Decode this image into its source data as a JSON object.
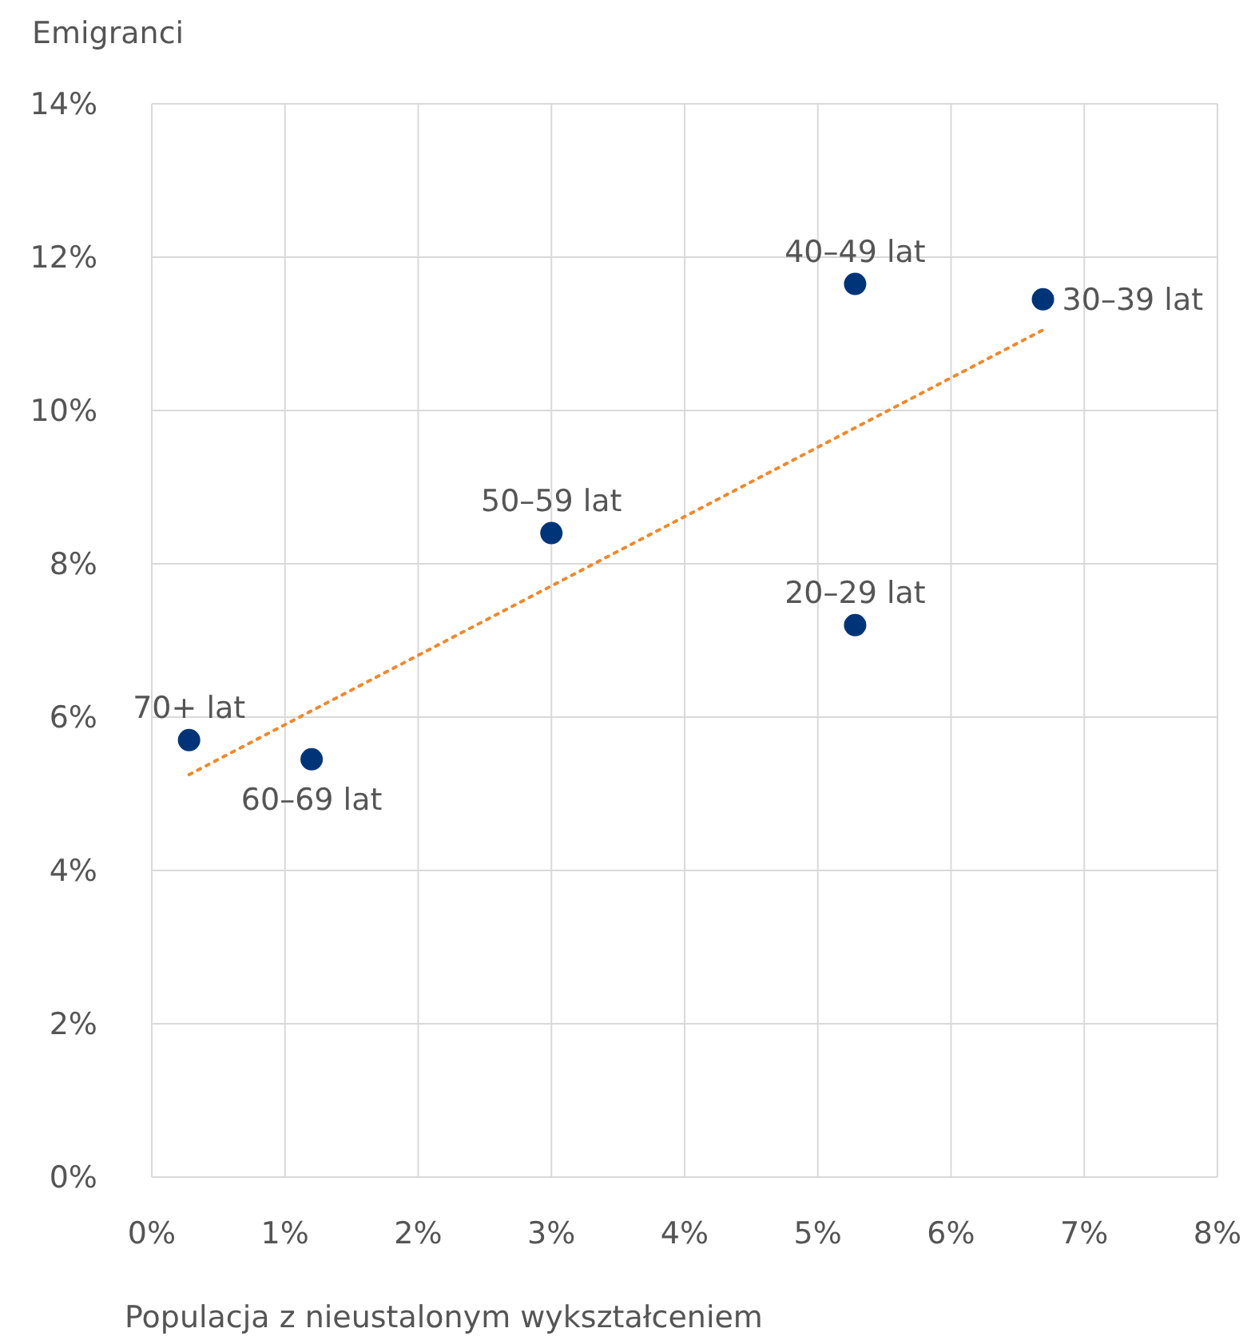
{
  "chart_data": {
    "type": "scatter",
    "xlabel": "Populacja z nieustalonym wykształceniem",
    "ylabel": "Emigranci",
    "xlim": [
      0,
      8
    ],
    "xticks": [
      {
        "value": 0,
        "label": "0%"
      },
      {
        "value": 1,
        "label": "1%"
      },
      {
        "value": 2,
        "label": "2%"
      },
      {
        "value": 3,
        "label": "3%"
      },
      {
        "value": 4,
        "label": "4%"
      },
      {
        "value": 5,
        "label": "5%"
      },
      {
        "value": 6,
        "label": "6%"
      },
      {
        "value": 7,
        "label": "7%"
      },
      {
        "value": 8,
        "label": "8%"
      }
    ],
    "ylim": [
      0,
      14
    ],
    "yticks": [
      {
        "value": 0,
        "label": "0%"
      },
      {
        "value": 2,
        "label": "2%"
      },
      {
        "value": 4,
        "label": "4%"
      },
      {
        "value": 6,
        "label": "6%"
      },
      {
        "value": 8,
        "label": "8%"
      },
      {
        "value": 10,
        "label": "10%"
      },
      {
        "value": 12,
        "label": "12%"
      },
      {
        "value": 14,
        "label": "14%"
      }
    ],
    "grid": true,
    "legend": false,
    "marker": "circle",
    "series": [
      {
        "color": "#003479",
        "x": [
          0.28,
          1.2,
          3.0,
          5.28,
          5.28,
          6.69
        ],
        "values": [
          5.7,
          5.45,
          8.4,
          11.65,
          7.2,
          11.45
        ]
      },
      {
        "type": "line",
        "color": "#f0892a",
        "line_style": "dotted",
        "marker": "none",
        "x": [
          0.28,
          6.69
        ],
        "values": [
          5.25,
          11.05
        ]
      }
    ],
    "annotations": [
      {
        "text": "70+ lat",
        "x": 0.28,
        "y": 5.7
      },
      {
        "text": "60–69 lat",
        "x": 1.2,
        "y": 5.45
      },
      {
        "text": "50–59 lat",
        "x": 3.0,
        "y": 8.4
      },
      {
        "text": "40–49 lat",
        "x": 5.28,
        "y": 11.65
      },
      {
        "text": "20–29 lat",
        "x": 5.28,
        "y": 7.2
      },
      {
        "text": "30–39 lat",
        "x": 6.69,
        "y": 11.45
      }
    ]
  }
}
